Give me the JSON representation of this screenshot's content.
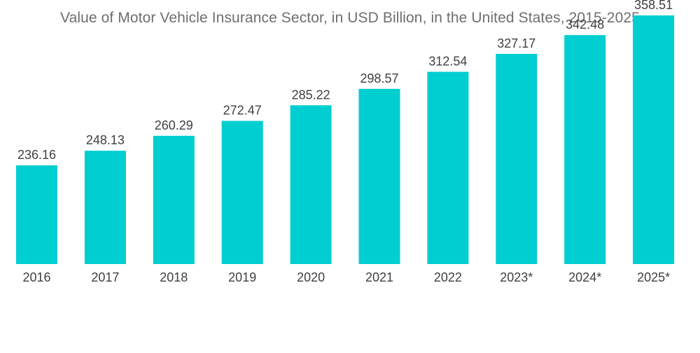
{
  "chart_data": {
    "type": "bar",
    "title": "Value of Motor Vehicle Insurance Sector, in USD Billion, in the United States, 2015-2025",
    "xlabel": "",
    "ylabel": "",
    "categories": [
      "2016",
      "2017",
      "2018",
      "2019",
      "2020",
      "2021",
      "2022",
      "2023*",
      "2024*",
      "2025*"
    ],
    "values": [
      236.16,
      248.13,
      260.29,
      272.47,
      285.22,
      298.57,
      312.54,
      327.17,
      342.48,
      358.51
    ],
    "value_labels": [
      "236.16",
      "248.13",
      "260.29",
      "272.47",
      "285.22",
      "298.57",
      "312.54",
      "327.17",
      "342.48",
      "358.51"
    ],
    "ylim": [
      0,
      400
    ],
    "grid": false,
    "legend": "none",
    "bar_color": "#00CED1"
  }
}
